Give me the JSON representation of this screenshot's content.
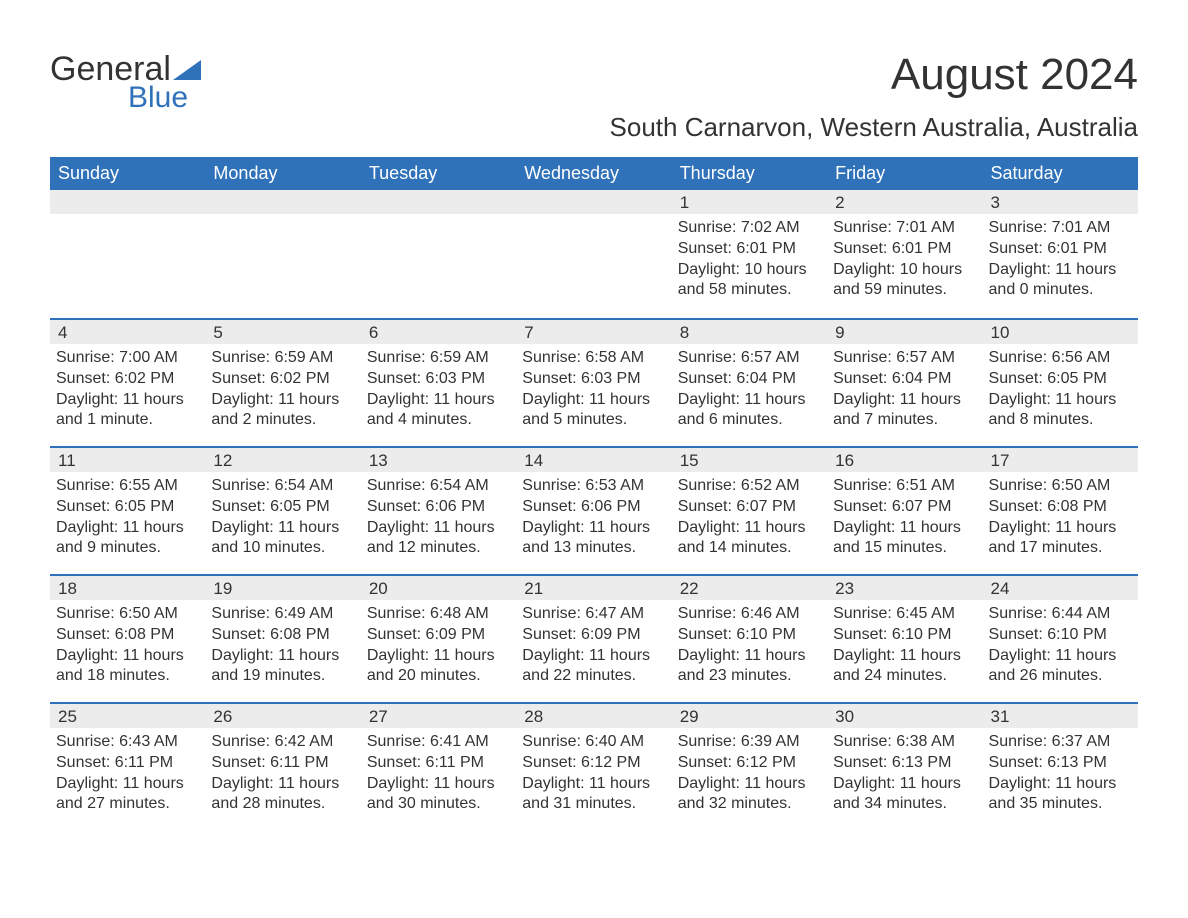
{
  "logo": {
    "text1": "General",
    "text2": "Blue",
    "accent_color": "#2f72b9"
  },
  "title": "August 2024",
  "location": "South Carnarvon, Western Australia, Australia",
  "colors": {
    "header_bg": "#2f72b9",
    "header_text": "#ffffff",
    "daynum_bg": "#ececec",
    "row_border": "#2f72b9",
    "body_text": "#333333",
    "page_bg": "#ffffff"
  },
  "typography": {
    "title_fontsize": 44,
    "location_fontsize": 26,
    "weekday_fontsize": 18,
    "cell_fontsize": 16
  },
  "weekdays": [
    "Sunday",
    "Monday",
    "Tuesday",
    "Wednesday",
    "Thursday",
    "Friday",
    "Saturday"
  ],
  "weeks": [
    [
      {
        "blank": true
      },
      {
        "blank": true
      },
      {
        "blank": true
      },
      {
        "blank": true
      },
      {
        "day": "1",
        "sunrise": "Sunrise: 7:02 AM",
        "sunset": "Sunset: 6:01 PM",
        "daylight": "Daylight: 10 hours and 58 minutes."
      },
      {
        "day": "2",
        "sunrise": "Sunrise: 7:01 AM",
        "sunset": "Sunset: 6:01 PM",
        "daylight": "Daylight: 10 hours and 59 minutes."
      },
      {
        "day": "3",
        "sunrise": "Sunrise: 7:01 AM",
        "sunset": "Sunset: 6:01 PM",
        "daylight": "Daylight: 11 hours and 0 minutes."
      }
    ],
    [
      {
        "day": "4",
        "sunrise": "Sunrise: 7:00 AM",
        "sunset": "Sunset: 6:02 PM",
        "daylight": "Daylight: 11 hours and 1 minute."
      },
      {
        "day": "5",
        "sunrise": "Sunrise: 6:59 AM",
        "sunset": "Sunset: 6:02 PM",
        "daylight": "Daylight: 11 hours and 2 minutes."
      },
      {
        "day": "6",
        "sunrise": "Sunrise: 6:59 AM",
        "sunset": "Sunset: 6:03 PM",
        "daylight": "Daylight: 11 hours and 4 minutes."
      },
      {
        "day": "7",
        "sunrise": "Sunrise: 6:58 AM",
        "sunset": "Sunset: 6:03 PM",
        "daylight": "Daylight: 11 hours and 5 minutes."
      },
      {
        "day": "8",
        "sunrise": "Sunrise: 6:57 AM",
        "sunset": "Sunset: 6:04 PM",
        "daylight": "Daylight: 11 hours and 6 minutes."
      },
      {
        "day": "9",
        "sunrise": "Sunrise: 6:57 AM",
        "sunset": "Sunset: 6:04 PM",
        "daylight": "Daylight: 11 hours and 7 minutes."
      },
      {
        "day": "10",
        "sunrise": "Sunrise: 6:56 AM",
        "sunset": "Sunset: 6:05 PM",
        "daylight": "Daylight: 11 hours and 8 minutes."
      }
    ],
    [
      {
        "day": "11",
        "sunrise": "Sunrise: 6:55 AM",
        "sunset": "Sunset: 6:05 PM",
        "daylight": "Daylight: 11 hours and 9 minutes."
      },
      {
        "day": "12",
        "sunrise": "Sunrise: 6:54 AM",
        "sunset": "Sunset: 6:05 PM",
        "daylight": "Daylight: 11 hours and 10 minutes."
      },
      {
        "day": "13",
        "sunrise": "Sunrise: 6:54 AM",
        "sunset": "Sunset: 6:06 PM",
        "daylight": "Daylight: 11 hours and 12 minutes."
      },
      {
        "day": "14",
        "sunrise": "Sunrise: 6:53 AM",
        "sunset": "Sunset: 6:06 PM",
        "daylight": "Daylight: 11 hours and 13 minutes."
      },
      {
        "day": "15",
        "sunrise": "Sunrise: 6:52 AM",
        "sunset": "Sunset: 6:07 PM",
        "daylight": "Daylight: 11 hours and 14 minutes."
      },
      {
        "day": "16",
        "sunrise": "Sunrise: 6:51 AM",
        "sunset": "Sunset: 6:07 PM",
        "daylight": "Daylight: 11 hours and 15 minutes."
      },
      {
        "day": "17",
        "sunrise": "Sunrise: 6:50 AM",
        "sunset": "Sunset: 6:08 PM",
        "daylight": "Daylight: 11 hours and 17 minutes."
      }
    ],
    [
      {
        "day": "18",
        "sunrise": "Sunrise: 6:50 AM",
        "sunset": "Sunset: 6:08 PM",
        "daylight": "Daylight: 11 hours and 18 minutes."
      },
      {
        "day": "19",
        "sunrise": "Sunrise: 6:49 AM",
        "sunset": "Sunset: 6:08 PM",
        "daylight": "Daylight: 11 hours and 19 minutes."
      },
      {
        "day": "20",
        "sunrise": "Sunrise: 6:48 AM",
        "sunset": "Sunset: 6:09 PM",
        "daylight": "Daylight: 11 hours and 20 minutes."
      },
      {
        "day": "21",
        "sunrise": "Sunrise: 6:47 AM",
        "sunset": "Sunset: 6:09 PM",
        "daylight": "Daylight: 11 hours and 22 minutes."
      },
      {
        "day": "22",
        "sunrise": "Sunrise: 6:46 AM",
        "sunset": "Sunset: 6:10 PM",
        "daylight": "Daylight: 11 hours and 23 minutes."
      },
      {
        "day": "23",
        "sunrise": "Sunrise: 6:45 AM",
        "sunset": "Sunset: 6:10 PM",
        "daylight": "Daylight: 11 hours and 24 minutes."
      },
      {
        "day": "24",
        "sunrise": "Sunrise: 6:44 AM",
        "sunset": "Sunset: 6:10 PM",
        "daylight": "Daylight: 11 hours and 26 minutes."
      }
    ],
    [
      {
        "day": "25",
        "sunrise": "Sunrise: 6:43 AM",
        "sunset": "Sunset: 6:11 PM",
        "daylight": "Daylight: 11 hours and 27 minutes."
      },
      {
        "day": "26",
        "sunrise": "Sunrise: 6:42 AM",
        "sunset": "Sunset: 6:11 PM",
        "daylight": "Daylight: 11 hours and 28 minutes."
      },
      {
        "day": "27",
        "sunrise": "Sunrise: 6:41 AM",
        "sunset": "Sunset: 6:11 PM",
        "daylight": "Daylight: 11 hours and 30 minutes."
      },
      {
        "day": "28",
        "sunrise": "Sunrise: 6:40 AM",
        "sunset": "Sunset: 6:12 PM",
        "daylight": "Daylight: 11 hours and 31 minutes."
      },
      {
        "day": "29",
        "sunrise": "Sunrise: 6:39 AM",
        "sunset": "Sunset: 6:12 PM",
        "daylight": "Daylight: 11 hours and 32 minutes."
      },
      {
        "day": "30",
        "sunrise": "Sunrise: 6:38 AM",
        "sunset": "Sunset: 6:13 PM",
        "daylight": "Daylight: 11 hours and 34 minutes."
      },
      {
        "day": "31",
        "sunrise": "Sunrise: 6:37 AM",
        "sunset": "Sunset: 6:13 PM",
        "daylight": "Daylight: 11 hours and 35 minutes."
      }
    ]
  ]
}
